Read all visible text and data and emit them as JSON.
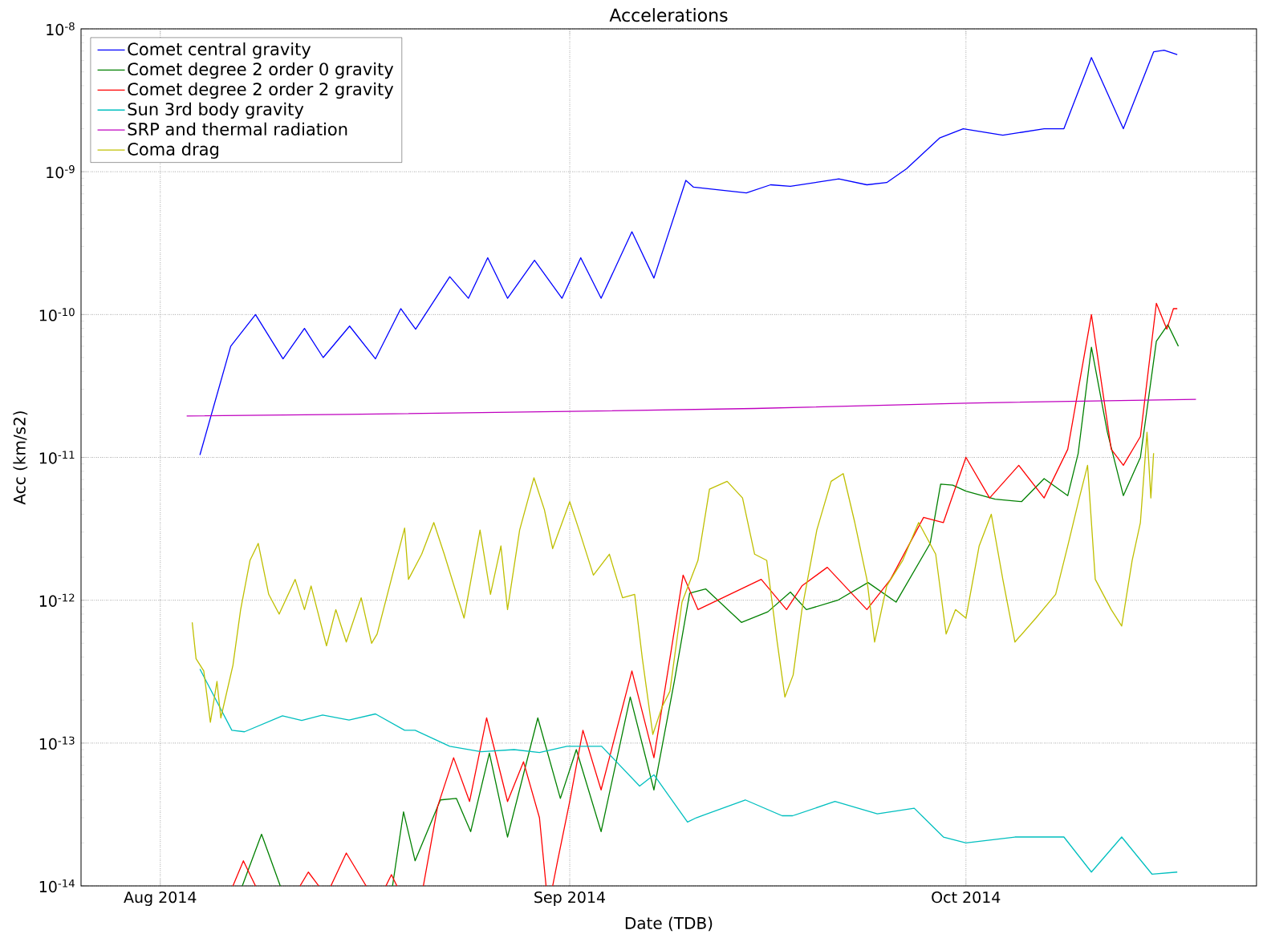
{
  "chart_data": {
    "type": "line",
    "title": "Accelerations",
    "xlabel": "Date (TDB)",
    "ylabel": "Acc (km/s2)",
    "log": true,
    "grid": true,
    "legend": "top left",
    "xlim": [
      "2014-07-26",
      "2014-10-23"
    ],
    "xticks": [
      {
        "value": "2014-08-01",
        "label": "Aug 2014"
      },
      {
        "value": "2014-09-01",
        "label": "Sep 2014"
      },
      {
        "value": "2014-10-01",
        "label": "Oct 2014"
      }
    ],
    "ylim": [
      1e-14,
      1e-08
    ],
    "yticks": [
      {
        "value": 1e-14,
        "label": "10$^{-14}$"
      },
      {
        "value": 1e-13,
        "label": "10$^{-13}$"
      },
      {
        "value": 1e-12,
        "label": "10$^{-12}$"
      },
      {
        "value": 1e-11,
        "label": "10$^{-11}$"
      },
      {
        "value": 1e-10,
        "label": "10$^{-10}$"
      },
      {
        "value": 1e-09,
        "label": "10$^{-9}$"
      },
      {
        "value": 1e-08,
        "label": "10$^{-8}$"
      }
    ],
    "series": [
      {
        "name": "Comet central gravity",
        "color": "#0000ff",
        "x": [
          "2014-08-04",
          "2014-08-06T08:00",
          "2014-08-08T05:00",
          "2014-08-10T07:00",
          "2014-08-11T22:00",
          "2014-08-13T08:00",
          "2014-08-15T08:00",
          "2014-08-17T07:00",
          "2014-08-19T05:00",
          "2014-08-20T08:00",
          "2014-08-22T22:00",
          "2014-08-24T08:00",
          "2014-08-25T19:00",
          "2014-08-27T07:00",
          "2014-08-29T08:00",
          "2014-08-31T10:00",
          "2014-09-01T20:00",
          "2014-09-03T09:00",
          "2014-09-05T17:00",
          "2014-09-07T09:00",
          "2014-09-09T19:00",
          "2014-09-10T09:00",
          "2014-09-14T09:00",
          "2014-09-16T05:00",
          "2014-09-17T17:00",
          "2014-09-21T09:00",
          "2014-09-23T12:00",
          "2014-09-25",
          "2014-09-26T12:00",
          "2014-09-29",
          "2014-09-30T19:00",
          "2014-10-03T19:00",
          "2014-10-06T22:00",
          "2014-10-08T10:00",
          "2014-10-10T12:00",
          "2014-10-12T22:00",
          "2014-10-15T05:00",
          "2014-10-16",
          "2014-10-17"
        ],
        "values": [
          1.04e-11,
          6e-11,
          1e-10,
          4.9e-11,
          8e-11,
          5e-11,
          8.3e-11,
          4.9e-11,
          1.1e-10,
          7.9e-11,
          1.84e-10,
          1.3e-10,
          2.5e-10,
          1.3e-10,
          2.4e-10,
          1.3e-10,
          2.5e-10,
          1.3e-10,
          3.8e-10,
          1.8e-10,
          8.7e-10,
          7.8e-10,
          7.1e-10,
          8.1e-10,
          7.9e-10,
          8.9e-10,
          8.1e-10,
          8.4e-10,
          1.05e-09,
          1.72e-09,
          2e-09,
          1.8e-09,
          2e-09,
          2e-09,
          6.3e-09,
          2e-09,
          6.9e-09,
          7.1e-09,
          6.6e-09
        ]
      },
      {
        "name": "Comet degree 2 order 0 gravity",
        "color": "#008000",
        "x": [
          "2014-08-07T05:00",
          "2014-08-08T16:00",
          "2014-08-10T02:00",
          "2014-08-14",
          "2014-08-18T14:00",
          "2014-08-19T10:00",
          "2014-08-20T07:00",
          "2014-08-22T05:00",
          "2014-08-23T10:00",
          "2014-08-24T12:00",
          "2014-08-25T22:00",
          "2014-08-27T07:00",
          "2014-08-29T14:00",
          "2014-08-31T07:00",
          "2014-09-01T12:00",
          "2014-09-03T09:00",
          "2014-09-05T14:00",
          "2014-09-07T09:00",
          "2014-09-08T22:00",
          "2014-09-10T02:00",
          "2014-09-11T07:00",
          "2014-09-14",
          "2014-09-16",
          "2014-09-17T17:00",
          "2014-09-18T22:00",
          "2014-09-21T07:00",
          "2014-09-23T14:00",
          "2014-09-25T17:00",
          "2014-09-28T07:00",
          "2014-09-29T02:00",
          "2014-09-30",
          "2014-10-01",
          "2014-10-03T05:00",
          "2014-10-05T05:00",
          "2014-10-06T22:00",
          "2014-10-08T17:00",
          "2014-10-09T12:00",
          "2014-10-10T12:00",
          "2014-10-11T17:00",
          "2014-10-12T22:00",
          "2014-10-14T05:00",
          "2014-10-15T10:00",
          "2014-10-16T07:00",
          "2014-10-17T02:00"
        ],
        "values": [
          1e-14,
          2.3e-14,
          1e-14,
          null,
          1e-14,
          3.3e-14,
          1.5e-14,
          4e-14,
          4.1e-14,
          2.4e-14,
          8.5e-14,
          2.2e-14,
          1.5e-13,
          4.1e-14,
          9e-14,
          2.4e-14,
          2.1e-13,
          4.7e-14,
          2.7e-13,
          1.12e-12,
          1.2e-12,
          7e-13,
          8.3e-13,
          1.14e-12,
          8.6e-13,
          1e-12,
          1.33e-12,
          9.7e-13,
          2.5e-12,
          6.5e-12,
          6.4e-12,
          5.8e-12,
          5.1e-12,
          4.9e-12,
          7.1e-12,
          5.4e-12,
          1.07e-11,
          5.9e-11,
          1.5e-11,
          5.4e-12,
          1e-11,
          6.5e-11,
          8.5e-11,
          6e-11
        ]
      },
      {
        "name": "Comet degree 2 order 2 gravity",
        "color": "#ff0000",
        "x": [
          "2014-08-06T12:00",
          "2014-08-07T07:00",
          "2014-08-08T05:00",
          "2014-08-10",
          "2014-08-11T14:00",
          "2014-08-12T05:00",
          "2014-08-13",
          "2014-08-13T12:00",
          "2014-08-13T22:00",
          "2014-08-15T02:00",
          "2014-08-16T14:00",
          "2014-08-17T06:00",
          "2014-08-18T02:00",
          "2014-08-18T12:00",
          "2014-08-18T22:00",
          "2014-08-19T12:00",
          "2014-08-20T22:00",
          "2014-08-22",
          "2014-08-23T05:00",
          "2014-08-24T10:00",
          "2014-08-25T17:00",
          "2014-08-27T07:00",
          "2014-08-28T12:00",
          "2014-08-29T17:00",
          "2014-08-30T05:00",
          "2014-08-30T11:00",
          "2014-08-30T17:00",
          "2014-08-31T02:00",
          "2014-09-01",
          "2014-09-02",
          "2014-09-03T09:00",
          "2014-09-05T17:00",
          "2014-09-07T09:00",
          "2014-09-08T14:00",
          "2014-09-09T14:00",
          "2014-09-10T17:00",
          "2014-09-12T14:00",
          "2014-09-15T12:00",
          "2014-09-17T10:00",
          "2014-09-18T14:00",
          "2014-09-20T12:00",
          "2014-09-23T12:00",
          "2014-09-25T07:00",
          "2014-09-27T19:00",
          "2014-09-29T07:00",
          "2014-10-01",
          "2014-10-02T19:00",
          "2014-10-05",
          "2014-10-06T22:00",
          "2014-10-08T17:00",
          "2014-10-10T12:00",
          "2014-10-12",
          "2014-10-12T22:00",
          "2014-10-14T05:00",
          "2014-10-15T10:00",
          "2014-10-16T05:00",
          "2014-10-16T17:00",
          "2014-10-17"
        ],
        "values": [
          1e-14,
          1.5e-14,
          1e-14,
          null,
          1e-14,
          1.25e-14,
          1e-14,
          null,
          1e-14,
          1.7e-14,
          1e-14,
          null,
          1e-14,
          1.2e-14,
          1e-14,
          null,
          1e-14,
          3.6e-14,
          7.9e-14,
          3.9e-14,
          1.5e-13,
          3.9e-14,
          7.4e-14,
          3e-14,
          1e-14,
          null,
          1e-14,
          1.5e-14,
          3.9e-14,
          1.23e-13,
          4.7e-14,
          3.2e-13,
          7.9e-14,
          3.9e-13,
          1.5e-12,
          8.6e-13,
          1.04e-12,
          1.4e-12,
          8.6e-13,
          1.26e-12,
          1.7e-12,
          8.6e-13,
          1.4e-12,
          3.8e-12,
          3.5e-12,
          1e-11,
          5.2e-12,
          8.8e-12,
          5.2e-12,
          1.14e-11,
          1e-10,
          1.14e-11,
          8.8e-12,
          1.4e-11,
          1.2e-10,
          7.9e-11,
          1.1e-10,
          1.1e-10
        ]
      },
      {
        "name": "Sun 3rd body gravity",
        "color": "#00bfbf",
        "x": [
          "2014-08-04",
          "2014-08-06T10:00",
          "2014-08-07T09:00",
          "2014-08-10T06:00",
          "2014-08-11T17:00",
          "2014-08-13T07:00",
          "2014-08-15T07:00",
          "2014-08-17T07:00",
          "2014-08-19T12:00",
          "2014-08-20T07:00",
          "2014-08-22T22:00",
          "2014-08-25T07:00",
          "2014-08-27T19:00",
          "2014-08-29T17:00",
          "2014-08-31T19:00",
          "2014-09-03T10:00",
          "2014-09-06T07:00",
          "2014-09-07T09:00",
          "2014-09-09T22:00",
          "2014-09-10T14:00",
          "2014-09-14T07:00",
          "2014-09-17T02:00",
          "2014-09-17T21:00",
          "2014-09-21T02:00",
          "2014-09-24T07:00",
          "2014-09-27T02:00",
          "2014-09-29T07:00",
          "2014-10-01",
          "2014-10-04T17:00",
          "2014-10-08T10:00",
          "2014-10-10T12:00",
          "2014-10-12T19:00",
          "2014-10-15T02:00",
          "2014-10-17"
        ],
        "values": [
          3.3e-13,
          1.23e-13,
          1.2e-13,
          1.55e-13,
          1.44e-13,
          1.57e-13,
          1.45e-13,
          1.6e-13,
          1.23e-13,
          1.23e-13,
          9.5e-14,
          8.7e-14,
          9e-14,
          8.6e-14,
          9.5e-14,
          9.5e-14,
          5e-14,
          6e-14,
          2.8e-14,
          3e-14,
          4e-14,
          3.1e-14,
          3.1e-14,
          3.9e-14,
          3.2e-14,
          3.5e-14,
          2.2e-14,
          2e-14,
          2.2e-14,
          2.2e-14,
          1.25e-14,
          2.2e-14,
          1.21e-14,
          1.25e-14
        ]
      },
      {
        "name": "SRP and thermal radiation",
        "color": "#bf00bf",
        "x": [
          "2014-08-03",
          "2014-08-15",
          "2014-09-01",
          "2014-09-15",
          "2014-10-01",
          "2014-10-18T10:00"
        ],
        "values": [
          1.95e-11,
          2e-11,
          2.1e-11,
          2.2e-11,
          2.4e-11,
          2.55e-11
        ]
      },
      {
        "name": "Coma drag",
        "color": "#bfbf00",
        "x": [
          "2014-08-03T10:00",
          "2014-08-03T17:00",
          "2014-08-04T07:00",
          "2014-08-04T19:00",
          "2014-08-05T07:00",
          "2014-08-05T14:00",
          "2014-08-06T12:00",
          "2014-08-07T02:00",
          "2014-08-07T19:00",
          "2014-08-08T10:00",
          "2014-08-09T05:00",
          "2014-08-10",
          "2014-08-11T05:00",
          "2014-08-11T22:00",
          "2014-08-12T10:00",
          "2014-08-13T14:00",
          "2014-08-14T07:00",
          "2014-08-15T02:00",
          "2014-08-16T05:00",
          "2014-08-17",
          "2014-08-17T10:00",
          "2014-08-19T12:00",
          "2014-08-19T19:00",
          "2014-08-20T19:00",
          "2014-08-21T17:00",
          "2014-08-22T12:00",
          "2014-08-24",
          "2014-08-25T05:00",
          "2014-08-26",
          "2014-08-26T19:00",
          "2014-08-27T07:00",
          "2014-08-28T05:00",
          "2014-08-29T07:00",
          "2014-08-30T02:00",
          "2014-08-30T17:00",
          "2014-09-01",
          "2014-09-01T17:00",
          "2014-09-02T19:00",
          "2014-09-04",
          "2014-09-05",
          "2014-09-05T22:00",
          "2014-09-06T12:00",
          "2014-09-07T07:00",
          "2014-09-08",
          "2014-09-08T14:00",
          "2014-09-09T12:00",
          "2014-09-10T17:00",
          "2014-09-11T14:00",
          "2014-09-12T22:00",
          "2014-09-14T02:00",
          "2014-09-15",
          "2014-09-15T22:00",
          "2014-09-16T17:00",
          "2014-09-17T07:00",
          "2014-09-17T22:00",
          "2014-09-18T14:00",
          "2014-09-19T17:00",
          "2014-09-20T19:00",
          "2014-09-21T17:00",
          "2014-09-22T14:00",
          "2014-09-23T12:00",
          "2014-09-24T02:00",
          "2014-09-25",
          "2014-09-26T05:00",
          "2014-09-27T10:00",
          "2014-09-28T17:00",
          "2014-09-29T12:00",
          "2014-09-30T05:00",
          "2014-10-01",
          "2014-10-02",
          "2014-10-02T22:00",
          "2014-10-03T19:00",
          "2014-10-04T17:00",
          "2014-10-06T07:00",
          "2014-10-07T19:00",
          "2014-10-08T17:00",
          "2014-10-09T14:00",
          "2014-10-10T05:00",
          "2014-10-10T19:00",
          "2014-10-12",
          "2014-10-12T19:00",
          "2014-10-13T14:00",
          "2014-10-14T05:00",
          "2014-10-14T17:00",
          "2014-10-15",
          "2014-10-15T05:00"
        ],
        "values": [
          7e-13,
          3.9e-13,
          3.2e-13,
          1.4e-13,
          2.7e-13,
          1.5e-13,
          3.5e-13,
          8.6e-13,
          1.9e-12,
          2.5e-12,
          1.1e-12,
          8e-13,
          1.4e-12,
          8.6e-13,
          1.26e-12,
          4.8e-13,
          8.6e-13,
          5.1e-13,
          1.04e-12,
          5e-13,
          5.8e-13,
          3.2e-12,
          1.4e-12,
          2.1e-12,
          3.5e-12,
          2.1e-12,
          7.5e-13,
          3.1e-12,
          1.1e-12,
          2.4e-12,
          8.6e-13,
          3.1e-12,
          7.2e-12,
          4.3e-12,
          2.3e-12,
          4.9e-12,
          3.1e-12,
          1.5e-12,
          2.1e-12,
          1.04e-12,
          1.1e-12,
          3.9e-13,
          1.15e-13,
          1.8e-13,
          2.3e-13,
          9.7e-13,
          1.9e-12,
          6e-12,
          6.8e-12,
          5.2e-12,
          2.1e-12,
          1.9e-12,
          5.1e-13,
          2.1e-13,
          3e-13,
          8.6e-13,
          3.1e-12,
          6.8e-12,
          7.7e-12,
          3.5e-12,
          1.4e-12,
          5.1e-13,
          1.26e-12,
          1.9e-12,
          3.5e-12,
          2.1e-12,
          5.8e-13,
          8.6e-13,
          7.5e-13,
          2.4e-12,
          4e-12,
          1.4e-12,
          5.1e-13,
          7.5e-13,
          1.1e-12,
          2.4e-12,
          5.2e-12,
          8.8e-12,
          1.4e-12,
          8.6e-13,
          6.6e-13,
          1.9e-12,
          3.5e-12,
          1.5e-11,
          5.2e-12,
          1.07e-11
        ]
      }
    ]
  }
}
